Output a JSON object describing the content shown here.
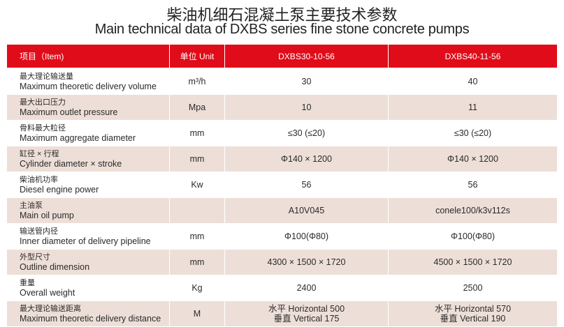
{
  "title_cn": "柴油机细石混凝土泵主要技术参数",
  "title_en": "Main technical data of DXBS series fine stone concrete pumps",
  "header": {
    "item": "项目（Item)",
    "unit": "单位 Unit",
    "model1": "DXBS30-10-56",
    "model2": "DXBS40-11-56"
  },
  "colors": {
    "header_bg": "#e10c19",
    "alt_row_bg": "#eddfd7"
  },
  "rows": [
    {
      "cn": "最大理论输送量",
      "en": "Maximum theoretic delivery  volume",
      "unit": "m³/h",
      "v1": "30",
      "v2": "40"
    },
    {
      "cn": "最大出口压力",
      "en": "Maximum outlet pressure",
      "unit": "Mpa",
      "v1": "10",
      "v2": "11"
    },
    {
      "cn": "骨料最大粒径",
      "en": "Maximum aggregate diameter",
      "unit": "mm",
      "v1": "≤30 (≤20)",
      "v2": "≤30 (≤20)"
    },
    {
      "cn": "缸径 × 行程",
      "en": "Cylinder diameter × stroke",
      "unit": "mm",
      "v1": "Φ140 × 1200",
      "v2": "Φ140 × 1200"
    },
    {
      "cn": "柴油机功率",
      "en": "Diesel engine power",
      "unit": "Kw",
      "v1": "56",
      "v2": "56"
    },
    {
      "cn": "主油泵",
      "en": "Main oil pump",
      "unit": "",
      "v1": "A10V045",
      "v2": "conele100/k3v112s"
    },
    {
      "cn": "输送管内径",
      "en": "Inner diameter of delivery pipeline",
      "unit": "mm",
      "v1": "Φ100(Φ80)",
      "v2": "Φ100(Φ80)"
    },
    {
      "cn": "外型尺寸",
      "en": "Outline dimension",
      "unit": "mm",
      "v1": "4300 × 1500 × 1720",
      "v2": "4500 × 1500 × 1720"
    },
    {
      "cn": "重量",
      "en": "Overall weight",
      "unit": "Kg",
      "v1": "2400",
      "v2": "2500"
    },
    {
      "cn": "最大理论输送距离",
      "en": "Maximum theoretic delivery distance",
      "unit": "M",
      "v1": "水平 Horizontal 500",
      "v1b": "垂直 Vertical 175",
      "v2": "水平 Horizontal 570",
      "v2b": "垂直 Vertical 190"
    }
  ]
}
